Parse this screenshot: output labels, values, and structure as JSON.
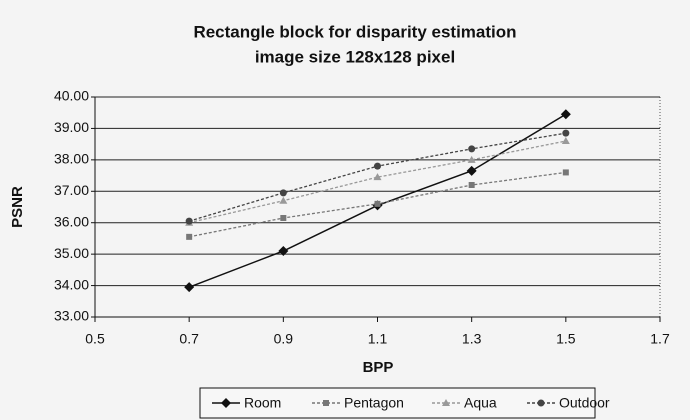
{
  "chart_data": {
    "type": "line",
    "title": "Rectangle block for disparity estimation",
    "subtitle": "image size 128x128 pixel",
    "x_label": "BPP",
    "y_label": "PSNR",
    "x": [
      0.7,
      0.9,
      1.1,
      1.3,
      1.5
    ],
    "series": [
      {
        "name": "Room",
        "color": "#111111",
        "marker": "diamond",
        "line_style": "solid",
        "values": [
          33.95,
          35.1,
          36.55,
          37.65,
          39.45
        ]
      },
      {
        "name": "Pentagon",
        "color": "#777777",
        "marker": "square",
        "line_style": "dashed",
        "values": [
          35.55,
          36.15,
          36.6,
          37.2,
          37.6
        ]
      },
      {
        "name": "Aqua",
        "color": "#999999",
        "marker": "triangle",
        "line_style": "dashed",
        "values": [
          36.0,
          36.7,
          37.45,
          38.0,
          38.6
        ]
      },
      {
        "name": "Outdoor",
        "color": "#444444",
        "marker": "circle",
        "line_style": "dashed",
        "values": [
          36.05,
          36.95,
          37.8,
          38.35,
          38.85
        ]
      }
    ],
    "xlim": [
      0.5,
      1.7
    ],
    "xticks": [
      0.5,
      0.7,
      0.9,
      1.1,
      1.3,
      1.5,
      1.7
    ],
    "ylim": [
      33,
      40
    ],
    "yticks": [
      {
        "value": 33,
        "label": "33.00"
      },
      {
        "value": 34,
        "label": "34.00"
      },
      {
        "value": 35,
        "label": "35.00"
      },
      {
        "value": 36,
        "label": "36.00"
      },
      {
        "value": 37,
        "label": "37.00"
      },
      {
        "value": 38,
        "label": "38.00"
      },
      {
        "value": 39,
        "label": "39.00"
      },
      {
        "value": 40,
        "label": "40.00"
      }
    ],
    "grid": true,
    "legend": "bottom"
  }
}
